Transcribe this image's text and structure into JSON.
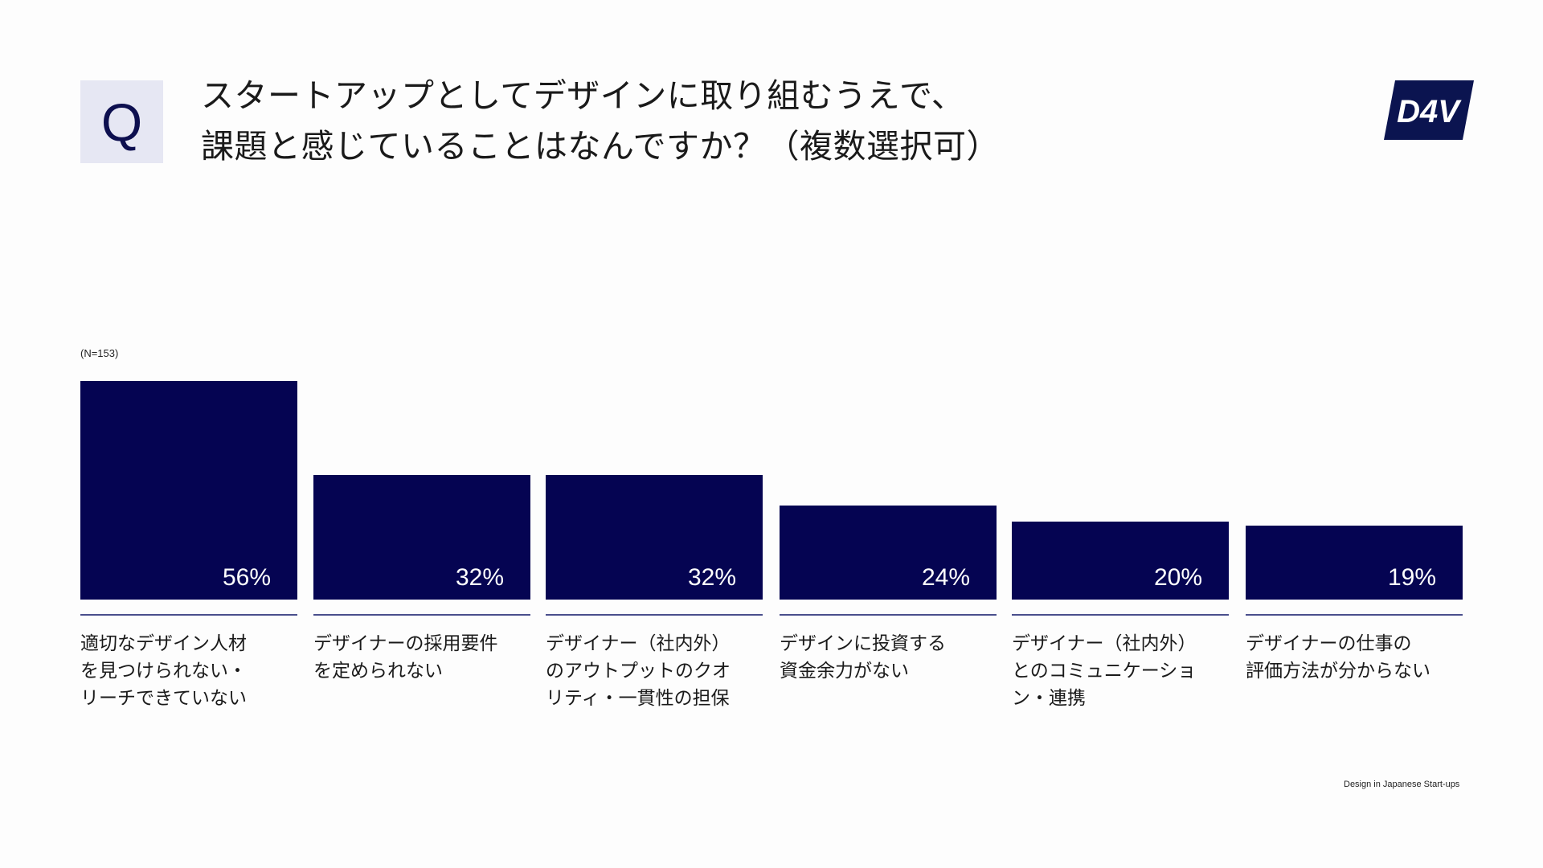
{
  "header": {
    "badge": "Q",
    "title_lines": [
      "スタートアップとしてデザインに取り組むうえで、",
      "課題と感じていることはなんですか？（複数選択可）"
    ],
    "logo_text": "D4V"
  },
  "sample_size": "(N=153)",
  "footer": "Design in Japanese Start-ups",
  "colors": {
    "bar": "#050452",
    "rule": "#4a4f8c",
    "badge_bg": "#e6e7f3",
    "badge_fg": "#0d0f4f",
    "logo_bg": "#0b1450"
  },
  "chart_data": {
    "type": "bar",
    "title": "スタートアップとしてデザインに取り組むうえで、課題と感じていることはなんですか？（複数選択可）",
    "subtitle": "(N=153)",
    "xlabel": "",
    "ylabel": "",
    "ylim": [
      0,
      56
    ],
    "grid": false,
    "legend": null,
    "categories": [
      "適切なデザイン人材を見つけられない・リーチできていない",
      "デザイナーの採用要件を定められない",
      "デザイナー（社内外）のアウトプットのクオリティ・一貫性の担保",
      "デザインに投資する資金余力がない",
      "デザイナー（社内外）とのコミュニケーション・連携",
      "デザイナーの仕事の評価方法が分からない"
    ],
    "values": [
      56,
      32,
      32,
      24,
      20,
      19
    ],
    "value_labels": [
      "56%",
      "32%",
      "32%",
      "24%",
      "20%",
      "19%"
    ],
    "category_lines": [
      [
        "適切なデザイン人材",
        "を見つけられない・",
        "リーチできていない"
      ],
      [
        "デザイナーの採用要件",
        "を定められない"
      ],
      [
        "デザイナー（社内外）",
        "のアウトプットのクオ",
        "リティ・一貫性の担保"
      ],
      [
        "デザインに投資する",
        "資金余力がない"
      ],
      [
        "デザイナー（社内外）",
        "とのコミュニケーショ",
        "ン・連携"
      ],
      [
        "デザイナーの仕事の",
        "評価方法が分からない"
      ]
    ]
  }
}
